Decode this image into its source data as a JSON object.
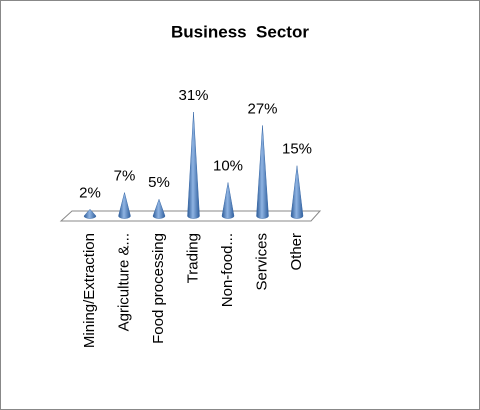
{
  "chart_data": {
    "type": "bar",
    "title": "Business  Sector",
    "categories": [
      "Mining/Extraction",
      "Agriculture &...",
      "Food processing",
      "Trading",
      "Non-food...",
      "Services",
      "Other"
    ],
    "values": [
      2,
      7,
      5,
      31,
      10,
      27,
      15
    ],
    "value_labels": [
      "2%",
      "7%",
      "5%",
      "31%",
      "10%",
      "27%",
      "15%"
    ],
    "color": "#4f81bd"
  }
}
